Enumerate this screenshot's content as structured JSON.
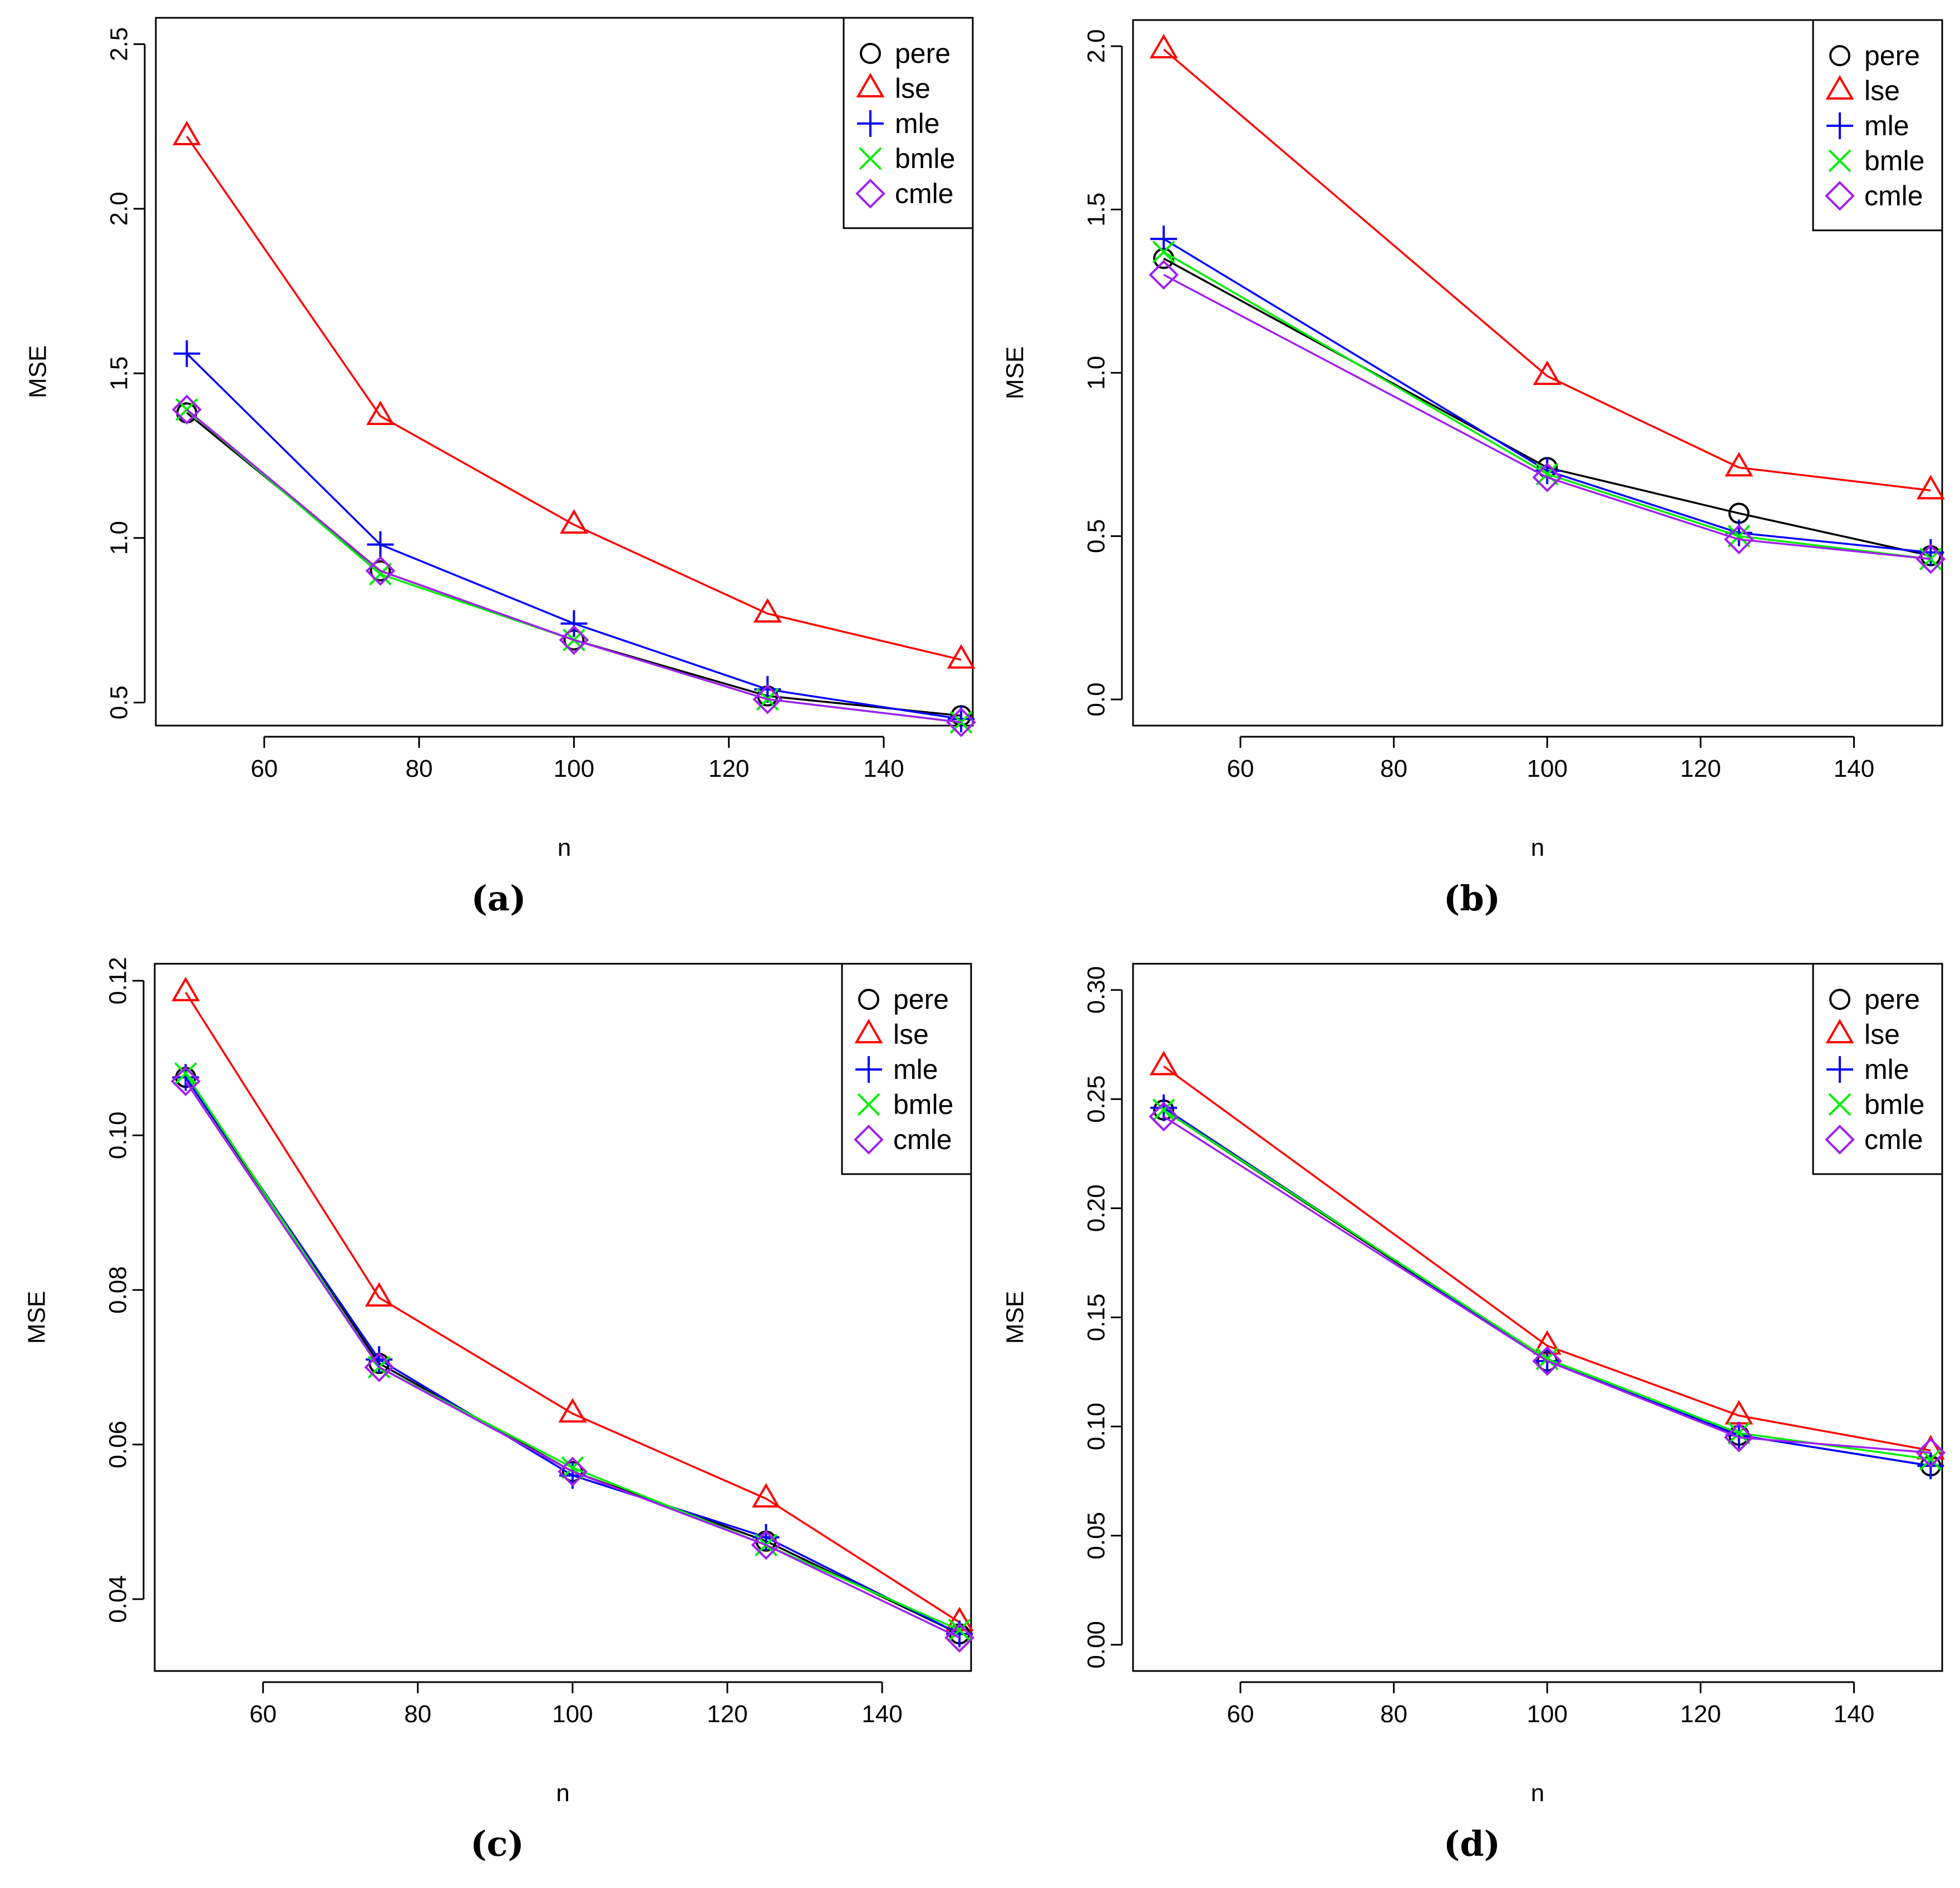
{
  "legend_entries": [
    {
      "key": "pere",
      "label": "pere",
      "color": "#000000",
      "marker": "circle"
    },
    {
      "key": "lse",
      "label": "lse",
      "color": "#ff0000",
      "marker": "triangle"
    },
    {
      "key": "mle",
      "label": "mle",
      "color": "#0000ff",
      "marker": "plus"
    },
    {
      "key": "bmle",
      "label": "bmle",
      "color": "#00ee00",
      "marker": "cross"
    },
    {
      "key": "cmle",
      "label": "cmle",
      "color": "#a020f0",
      "marker": "diamond"
    }
  ],
  "chart_data": [
    {
      "type": "line",
      "caption": "(a)",
      "xlabel": "n",
      "ylabel": "MSE",
      "xlim": [
        46,
        151.5
      ],
      "ylim": [
        0.43,
        2.58
      ],
      "xticks": [
        60,
        80,
        100,
        120,
        140
      ],
      "yticks": [
        0.5,
        1.0,
        1.5,
        2.0,
        2.5
      ],
      "ytick_labels": [
        "0.5",
        "1.0",
        "1.5",
        "2.0",
        "2.5"
      ],
      "legend_position": "top-right",
      "x": [
        50,
        75,
        100,
        125,
        150
      ],
      "series": [
        {
          "name": "pere",
          "values": [
            1.38,
            0.9,
            0.69,
            0.52,
            0.46
          ]
        },
        {
          "name": "lse",
          "values": [
            2.22,
            1.37,
            1.04,
            0.77,
            0.63
          ]
        },
        {
          "name": "mle",
          "values": [
            1.56,
            0.98,
            0.74,
            0.54,
            0.45
          ]
        },
        {
          "name": "bmle",
          "values": [
            1.39,
            0.89,
            0.69,
            0.51,
            0.44
          ]
        },
        {
          "name": "cmle",
          "values": [
            1.39,
            0.9,
            0.69,
            0.51,
            0.44
          ]
        }
      ]
    },
    {
      "type": "line",
      "caption": "(b)",
      "xlabel": "n",
      "ylabel": "MSE",
      "xlim": [
        46,
        151.5
      ],
      "ylim": [
        -0.08,
        2.08
      ],
      "xticks": [
        60,
        80,
        100,
        120,
        140
      ],
      "yticks": [
        0.0,
        0.5,
        1.0,
        1.5,
        2.0
      ],
      "ytick_labels": [
        "0.0",
        "0.5",
        "1.0",
        "1.5",
        "2.0"
      ],
      "legend_position": "top-right",
      "x": [
        50,
        100,
        125,
        150
      ],
      "series": [
        {
          "name": "pere",
          "values": [
            1.35,
            0.71,
            0.57,
            0.44
          ]
        },
        {
          "name": "lse",
          "values": [
            1.99,
            0.99,
            0.71,
            0.64
          ]
        },
        {
          "name": "mle",
          "values": [
            1.41,
            0.7,
            0.51,
            0.45
          ]
        },
        {
          "name": "bmle",
          "values": [
            1.37,
            0.69,
            0.5,
            0.43
          ]
        },
        {
          "name": "cmle",
          "values": [
            1.3,
            0.68,
            0.49,
            0.43
          ]
        }
      ]
    },
    {
      "type": "line",
      "caption": "(c)",
      "xlabel": "n",
      "ylabel": "MSE",
      "xlim": [
        46,
        151.5
      ],
      "ylim": [
        0.0307,
        0.1222
      ],
      "xticks": [
        60,
        80,
        100,
        120,
        140
      ],
      "yticks": [
        0.04,
        0.06,
        0.08,
        0.1,
        0.12
      ],
      "ytick_labels": [
        "0.04",
        "0.06",
        "0.08",
        "0.10",
        "0.12"
      ],
      "legend_position": "top-right",
      "x": [
        50,
        75,
        100,
        125,
        150
      ],
      "series": [
        {
          "name": "pere",
          "values": [
            0.1075,
            0.0705,
            0.0565,
            0.0475,
            0.0355
          ]
        },
        {
          "name": "lse",
          "values": [
            0.1185,
            0.079,
            0.064,
            0.053,
            0.037
          ]
        },
        {
          "name": "mle",
          "values": [
            0.1075,
            0.071,
            0.056,
            0.048,
            0.0355
          ]
        },
        {
          "name": "bmle",
          "values": [
            0.108,
            0.07,
            0.057,
            0.047,
            0.036
          ]
        },
        {
          "name": "cmle",
          "values": [
            0.107,
            0.07,
            0.0565,
            0.047,
            0.035
          ]
        }
      ]
    },
    {
      "type": "line",
      "caption": "(d)",
      "xlabel": "n",
      "ylabel": "MSE",
      "xlim": [
        46,
        151.5
      ],
      "ylim": [
        -0.012,
        0.312
      ],
      "xticks": [
        60,
        80,
        100,
        120,
        140
      ],
      "yticks": [
        0.0,
        0.05,
        0.1,
        0.15,
        0.2,
        0.25,
        0.3
      ],
      "ytick_labels": [
        "0.00",
        "0.05",
        "0.10",
        "0.15",
        "0.20",
        "0.25",
        "0.30"
      ],
      "legend_position": "top-right",
      "x": [
        50,
        100,
        125,
        150
      ],
      "series": [
        {
          "name": "pere",
          "values": [
            0.245,
            0.13,
            0.096,
            0.082
          ]
        },
        {
          "name": "lse",
          "values": [
            0.265,
            0.137,
            0.105,
            0.089
          ]
        },
        {
          "name": "mle",
          "values": [
            0.246,
            0.13,
            0.096,
            0.082
          ]
        },
        {
          "name": "bmle",
          "values": [
            0.245,
            0.131,
            0.097,
            0.085
          ]
        },
        {
          "name": "cmle",
          "values": [
            0.242,
            0.13,
            0.095,
            0.088
          ]
        }
      ]
    }
  ]
}
